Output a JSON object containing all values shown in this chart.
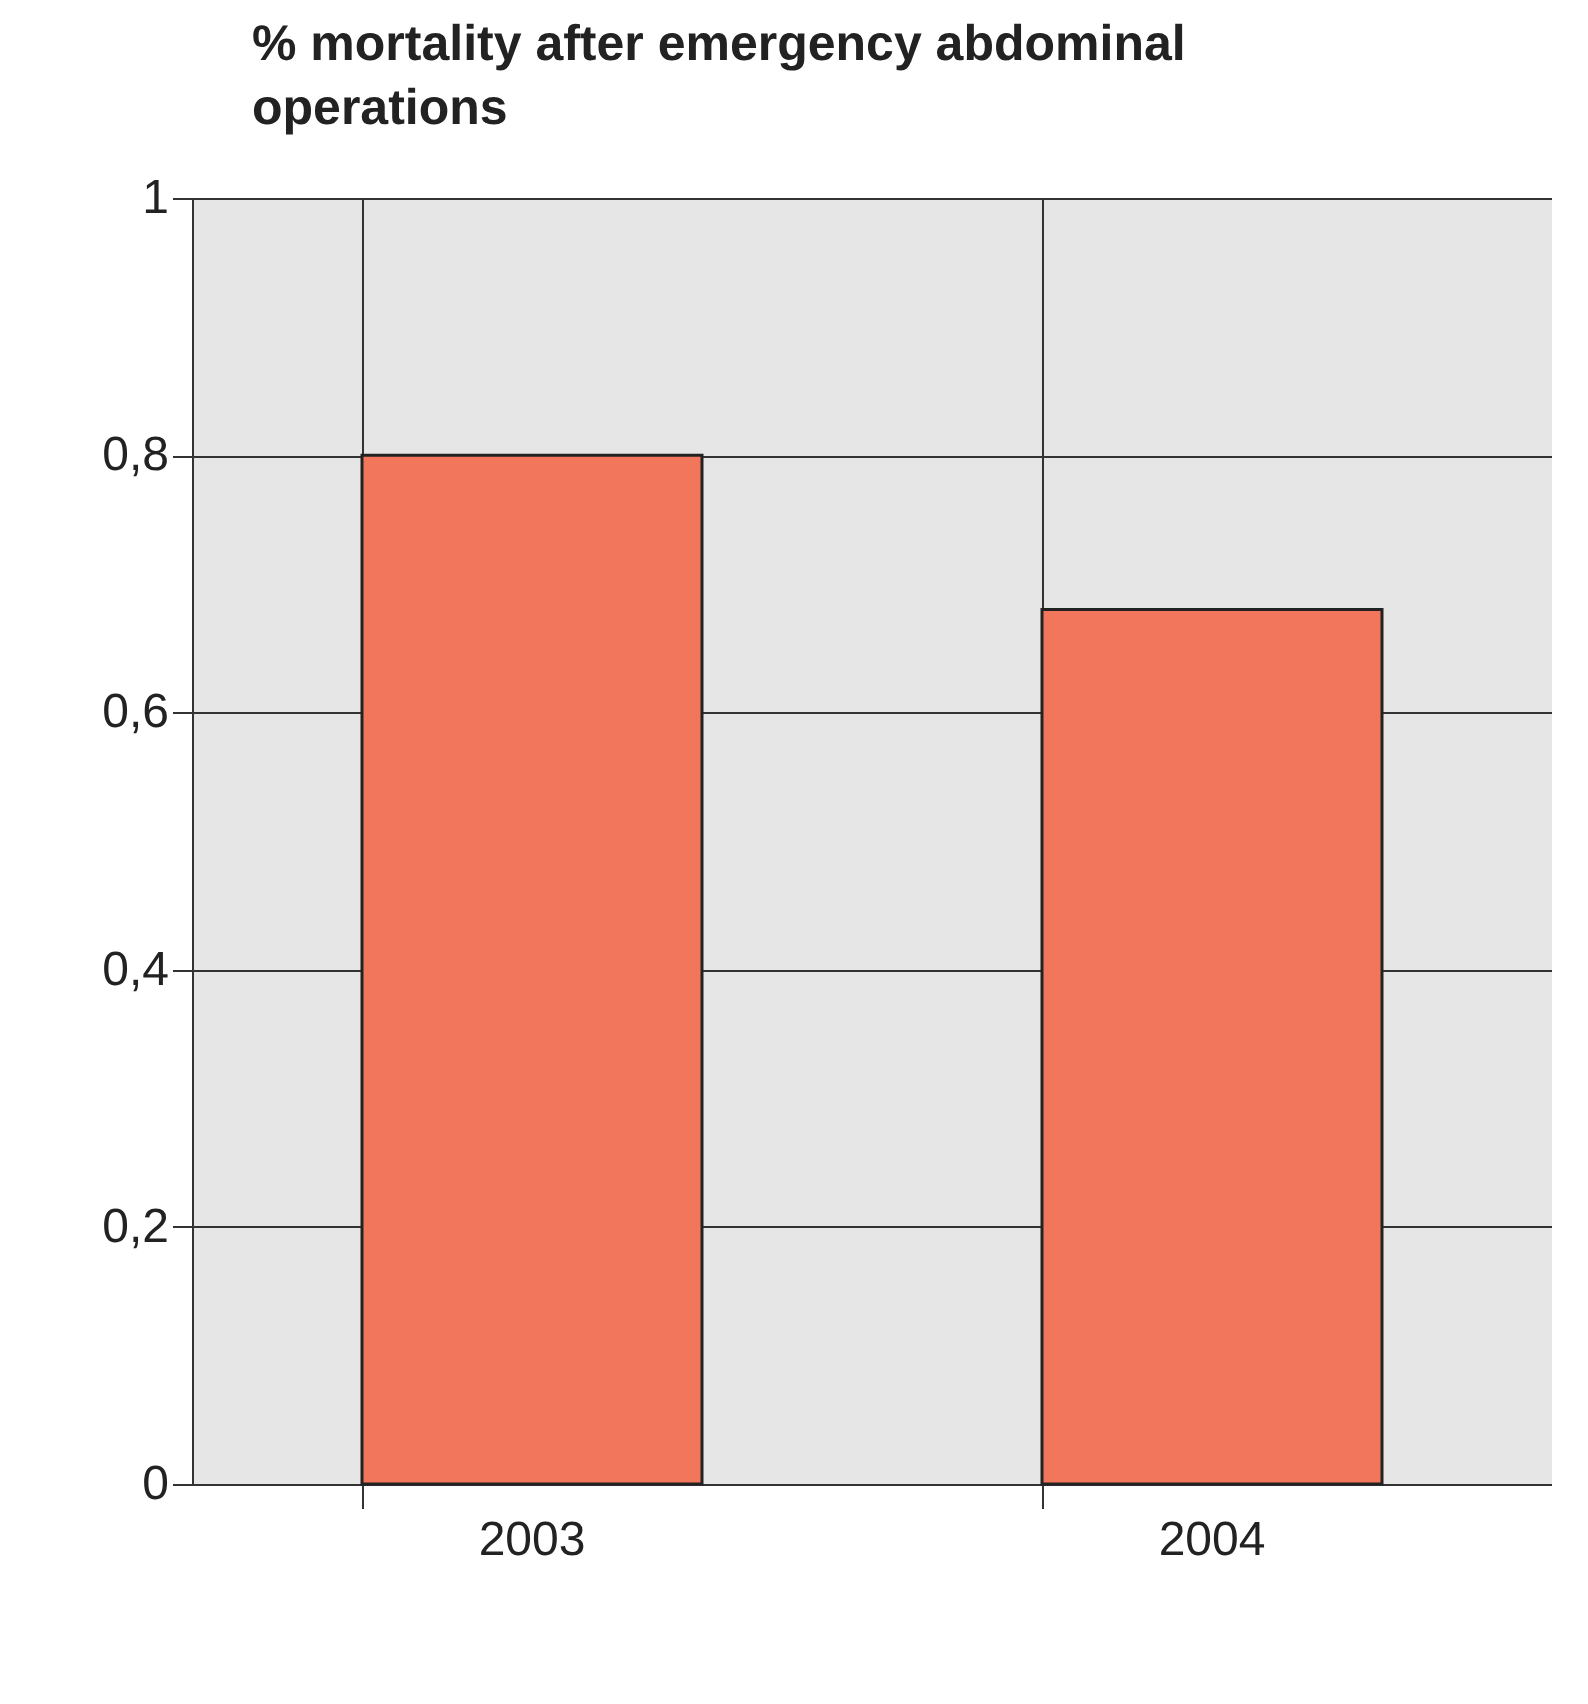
{
  "chart_data": {
    "type": "bar",
    "title": "% mortality after emergency abdominal operations",
    "categories": [
      "2003",
      "2004"
    ],
    "values": [
      0.8,
      0.68
    ],
    "color": "#f2765c",
    "ylim": [
      0,
      1
    ],
    "yticks": [
      0,
      {
        "value": 0.2,
        "label": "0,2"
      },
      {
        "value": 0.4,
        "label": "0,4"
      },
      {
        "value": 0.6,
        "label": "0,6"
      },
      {
        "value": 0.8,
        "label": "0,8"
      },
      1
    ],
    "grid": true
  }
}
